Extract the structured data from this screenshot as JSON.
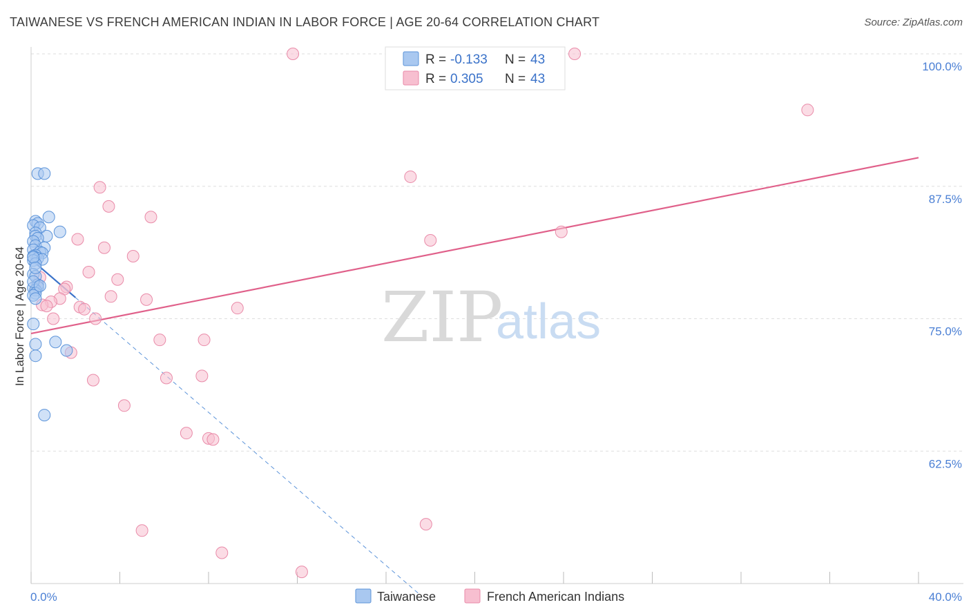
{
  "title": "TAIWANESE VS FRENCH AMERICAN INDIAN IN LABOR FORCE | AGE 20-64 CORRELATION CHART",
  "source": "Source: ZipAtlas.com",
  "watermark": {
    "zip": "ZIP",
    "atlas": "atlas"
  },
  "colors": {
    "blue_fill": "#a9c8f0",
    "blue_stroke": "#5b93d9",
    "blue_line": "#3a72c9",
    "pink_fill": "#f7bfd0",
    "pink_stroke": "#e98aa8",
    "pink_line": "#e0608a",
    "grid": "#dddddd",
    "axis_label": "#4a7fd4"
  },
  "chart_data": {
    "type": "scatter",
    "xlabel": "",
    "ylabel": "In Labor Force | Age 20-64",
    "xlim": [
      0,
      40
    ],
    "ylim": [
      50,
      100
    ],
    "x_tick_labels": [
      "0.0%",
      "40.0%"
    ],
    "y_ticks": [
      62.5,
      75.0,
      87.5,
      100.0
    ],
    "y_tick_labels": [
      "62.5%",
      "75.0%",
      "87.5%",
      "100.0%"
    ],
    "grid": true,
    "legend": {
      "position": "top-center",
      "entries": [
        {
          "r_label": "R = ",
          "r_value": "-0.133",
          "n_label": "N = ",
          "n_value": "43"
        },
        {
          "r_label": "R = ",
          "r_value": "0.305",
          "n_label": "N = ",
          "n_value": "43"
        }
      ]
    },
    "series": [
      {
        "name": "Taiwanese",
        "points": [
          [
            0.3,
            88.7
          ],
          [
            0.6,
            88.7
          ],
          [
            0.8,
            84.6
          ],
          [
            0.2,
            84.2
          ],
          [
            0.3,
            84.0
          ],
          [
            0.1,
            83.8
          ],
          [
            0.4,
            83.6
          ],
          [
            1.3,
            83.2
          ],
          [
            0.2,
            83.1
          ],
          [
            0.2,
            82.8
          ],
          [
            0.7,
            82.8
          ],
          [
            0.3,
            82.6
          ],
          [
            0.1,
            82.3
          ],
          [
            0.2,
            81.9
          ],
          [
            0.6,
            81.7
          ],
          [
            0.1,
            81.5
          ],
          [
            0.4,
            81.3
          ],
          [
            0.5,
            81.2
          ],
          [
            0.2,
            81.0
          ],
          [
            0.1,
            80.9
          ],
          [
            0.3,
            80.7
          ],
          [
            0.5,
            80.6
          ],
          [
            0.1,
            80.5
          ],
          [
            0.2,
            80.2
          ],
          [
            0.1,
            79.2
          ],
          [
            0.2,
            79.0
          ],
          [
            0.3,
            78.2
          ],
          [
            0.3,
            78.0
          ],
          [
            0.1,
            77.9
          ],
          [
            0.2,
            77.7
          ],
          [
            0.2,
            77.4
          ],
          [
            0.1,
            77.2
          ],
          [
            0.2,
            76.9
          ],
          [
            0.1,
            74.5
          ],
          [
            0.2,
            72.6
          ],
          [
            1.1,
            72.8
          ],
          [
            1.6,
            72.0
          ],
          [
            0.2,
            71.5
          ],
          [
            0.6,
            65.9
          ],
          [
            0.1,
            78.5
          ],
          [
            0.4,
            78.1
          ],
          [
            0.1,
            80.8
          ],
          [
            0.2,
            79.8
          ]
        ],
        "trend": {
          "x": [
            0.0,
            2.0
          ],
          "y": [
            80.6,
            77.0
          ]
        },
        "trend_extension": {
          "x": [
            2.0,
            17.5
          ],
          "y": [
            77.0,
            49.0
          ]
        }
      },
      {
        "name": "French American Indians",
        "points": [
          [
            11.8,
            100.0
          ],
          [
            24.5,
            100.0
          ],
          [
            35.0,
            94.7
          ],
          [
            17.1,
            88.4
          ],
          [
            3.1,
            87.4
          ],
          [
            3.5,
            85.6
          ],
          [
            5.4,
            84.6
          ],
          [
            2.1,
            82.5
          ],
          [
            18.0,
            82.4
          ],
          [
            23.9,
            83.2
          ],
          [
            3.3,
            81.7
          ],
          [
            4.6,
            80.9
          ],
          [
            2.6,
            79.4
          ],
          [
            0.4,
            78.9
          ],
          [
            3.9,
            78.7
          ],
          [
            1.6,
            78.0
          ],
          [
            1.5,
            77.8
          ],
          [
            0.3,
            78.2
          ],
          [
            3.6,
            77.1
          ],
          [
            5.2,
            76.8
          ],
          [
            1.3,
            76.9
          ],
          [
            0.9,
            76.6
          ],
          [
            0.5,
            76.3
          ],
          [
            0.7,
            76.2
          ],
          [
            2.2,
            76.1
          ],
          [
            2.4,
            75.9
          ],
          [
            9.3,
            76.0
          ],
          [
            2.9,
            75.0
          ],
          [
            1.0,
            75.0
          ],
          [
            5.8,
            73.0
          ],
          [
            7.8,
            73.0
          ],
          [
            1.8,
            71.8
          ],
          [
            2.8,
            69.2
          ],
          [
            6.1,
            69.4
          ],
          [
            7.7,
            69.6
          ],
          [
            4.2,
            66.8
          ],
          [
            7.0,
            64.2
          ],
          [
            8.0,
            63.7
          ],
          [
            8.2,
            63.6
          ],
          [
            5.0,
            55.0
          ],
          [
            17.8,
            55.6
          ],
          [
            8.6,
            52.9
          ],
          [
            12.2,
            51.1
          ]
        ],
        "trend": {
          "x": [
            0.0,
            40.0
          ],
          "y": [
            73.6,
            90.2
          ]
        }
      }
    ]
  }
}
